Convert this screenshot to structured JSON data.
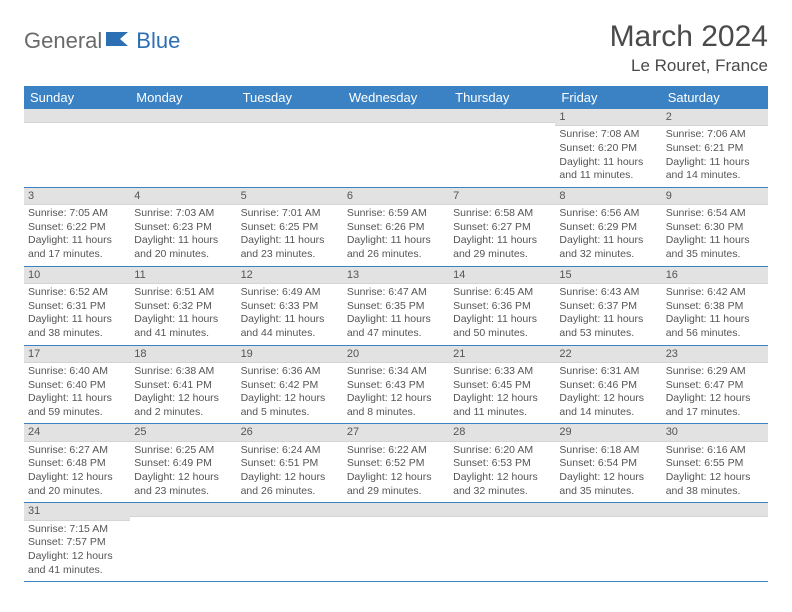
{
  "logo": {
    "part1": "General",
    "part2": "Blue"
  },
  "title": "March 2024",
  "location": "Le Rouret, France",
  "day_headers": [
    "Sunday",
    "Monday",
    "Tuesday",
    "Wednesday",
    "Thursday",
    "Friday",
    "Saturday"
  ],
  "header_bg": "#3a82c4",
  "header_fg": "#ffffff",
  "daynum_bg": "#e2e2e2",
  "row_border": "#3a82c4",
  "weeks": [
    [
      {
        "n": "",
        "sr": "",
        "ss": "",
        "dl": ""
      },
      {
        "n": "",
        "sr": "",
        "ss": "",
        "dl": ""
      },
      {
        "n": "",
        "sr": "",
        "ss": "",
        "dl": ""
      },
      {
        "n": "",
        "sr": "",
        "ss": "",
        "dl": ""
      },
      {
        "n": "",
        "sr": "",
        "ss": "",
        "dl": ""
      },
      {
        "n": "1",
        "sr": "Sunrise: 7:08 AM",
        "ss": "Sunset: 6:20 PM",
        "dl": "Daylight: 11 hours and 11 minutes."
      },
      {
        "n": "2",
        "sr": "Sunrise: 7:06 AM",
        "ss": "Sunset: 6:21 PM",
        "dl": "Daylight: 11 hours and 14 minutes."
      }
    ],
    [
      {
        "n": "3",
        "sr": "Sunrise: 7:05 AM",
        "ss": "Sunset: 6:22 PM",
        "dl": "Daylight: 11 hours and 17 minutes."
      },
      {
        "n": "4",
        "sr": "Sunrise: 7:03 AM",
        "ss": "Sunset: 6:23 PM",
        "dl": "Daylight: 11 hours and 20 minutes."
      },
      {
        "n": "5",
        "sr": "Sunrise: 7:01 AM",
        "ss": "Sunset: 6:25 PM",
        "dl": "Daylight: 11 hours and 23 minutes."
      },
      {
        "n": "6",
        "sr": "Sunrise: 6:59 AM",
        "ss": "Sunset: 6:26 PM",
        "dl": "Daylight: 11 hours and 26 minutes."
      },
      {
        "n": "7",
        "sr": "Sunrise: 6:58 AM",
        "ss": "Sunset: 6:27 PM",
        "dl": "Daylight: 11 hours and 29 minutes."
      },
      {
        "n": "8",
        "sr": "Sunrise: 6:56 AM",
        "ss": "Sunset: 6:29 PM",
        "dl": "Daylight: 11 hours and 32 minutes."
      },
      {
        "n": "9",
        "sr": "Sunrise: 6:54 AM",
        "ss": "Sunset: 6:30 PM",
        "dl": "Daylight: 11 hours and 35 minutes."
      }
    ],
    [
      {
        "n": "10",
        "sr": "Sunrise: 6:52 AM",
        "ss": "Sunset: 6:31 PM",
        "dl": "Daylight: 11 hours and 38 minutes."
      },
      {
        "n": "11",
        "sr": "Sunrise: 6:51 AM",
        "ss": "Sunset: 6:32 PM",
        "dl": "Daylight: 11 hours and 41 minutes."
      },
      {
        "n": "12",
        "sr": "Sunrise: 6:49 AM",
        "ss": "Sunset: 6:33 PM",
        "dl": "Daylight: 11 hours and 44 minutes."
      },
      {
        "n": "13",
        "sr": "Sunrise: 6:47 AM",
        "ss": "Sunset: 6:35 PM",
        "dl": "Daylight: 11 hours and 47 minutes."
      },
      {
        "n": "14",
        "sr": "Sunrise: 6:45 AM",
        "ss": "Sunset: 6:36 PM",
        "dl": "Daylight: 11 hours and 50 minutes."
      },
      {
        "n": "15",
        "sr": "Sunrise: 6:43 AM",
        "ss": "Sunset: 6:37 PM",
        "dl": "Daylight: 11 hours and 53 minutes."
      },
      {
        "n": "16",
        "sr": "Sunrise: 6:42 AM",
        "ss": "Sunset: 6:38 PM",
        "dl": "Daylight: 11 hours and 56 minutes."
      }
    ],
    [
      {
        "n": "17",
        "sr": "Sunrise: 6:40 AM",
        "ss": "Sunset: 6:40 PM",
        "dl": "Daylight: 11 hours and 59 minutes."
      },
      {
        "n": "18",
        "sr": "Sunrise: 6:38 AM",
        "ss": "Sunset: 6:41 PM",
        "dl": "Daylight: 12 hours and 2 minutes."
      },
      {
        "n": "19",
        "sr": "Sunrise: 6:36 AM",
        "ss": "Sunset: 6:42 PM",
        "dl": "Daylight: 12 hours and 5 minutes."
      },
      {
        "n": "20",
        "sr": "Sunrise: 6:34 AM",
        "ss": "Sunset: 6:43 PM",
        "dl": "Daylight: 12 hours and 8 minutes."
      },
      {
        "n": "21",
        "sr": "Sunrise: 6:33 AM",
        "ss": "Sunset: 6:45 PM",
        "dl": "Daylight: 12 hours and 11 minutes."
      },
      {
        "n": "22",
        "sr": "Sunrise: 6:31 AM",
        "ss": "Sunset: 6:46 PM",
        "dl": "Daylight: 12 hours and 14 minutes."
      },
      {
        "n": "23",
        "sr": "Sunrise: 6:29 AM",
        "ss": "Sunset: 6:47 PM",
        "dl": "Daylight: 12 hours and 17 minutes."
      }
    ],
    [
      {
        "n": "24",
        "sr": "Sunrise: 6:27 AM",
        "ss": "Sunset: 6:48 PM",
        "dl": "Daylight: 12 hours and 20 minutes."
      },
      {
        "n": "25",
        "sr": "Sunrise: 6:25 AM",
        "ss": "Sunset: 6:49 PM",
        "dl": "Daylight: 12 hours and 23 minutes."
      },
      {
        "n": "26",
        "sr": "Sunrise: 6:24 AM",
        "ss": "Sunset: 6:51 PM",
        "dl": "Daylight: 12 hours and 26 minutes."
      },
      {
        "n": "27",
        "sr": "Sunrise: 6:22 AM",
        "ss": "Sunset: 6:52 PM",
        "dl": "Daylight: 12 hours and 29 minutes."
      },
      {
        "n": "28",
        "sr": "Sunrise: 6:20 AM",
        "ss": "Sunset: 6:53 PM",
        "dl": "Daylight: 12 hours and 32 minutes."
      },
      {
        "n": "29",
        "sr": "Sunrise: 6:18 AM",
        "ss": "Sunset: 6:54 PM",
        "dl": "Daylight: 12 hours and 35 minutes."
      },
      {
        "n": "30",
        "sr": "Sunrise: 6:16 AM",
        "ss": "Sunset: 6:55 PM",
        "dl": "Daylight: 12 hours and 38 minutes."
      }
    ],
    [
      {
        "n": "31",
        "sr": "Sunrise: 7:15 AM",
        "ss": "Sunset: 7:57 PM",
        "dl": "Daylight: 12 hours and 41 minutes."
      },
      {
        "n": "",
        "sr": "",
        "ss": "",
        "dl": ""
      },
      {
        "n": "",
        "sr": "",
        "ss": "",
        "dl": ""
      },
      {
        "n": "",
        "sr": "",
        "ss": "",
        "dl": ""
      },
      {
        "n": "",
        "sr": "",
        "ss": "",
        "dl": ""
      },
      {
        "n": "",
        "sr": "",
        "ss": "",
        "dl": ""
      },
      {
        "n": "",
        "sr": "",
        "ss": "",
        "dl": ""
      }
    ]
  ]
}
